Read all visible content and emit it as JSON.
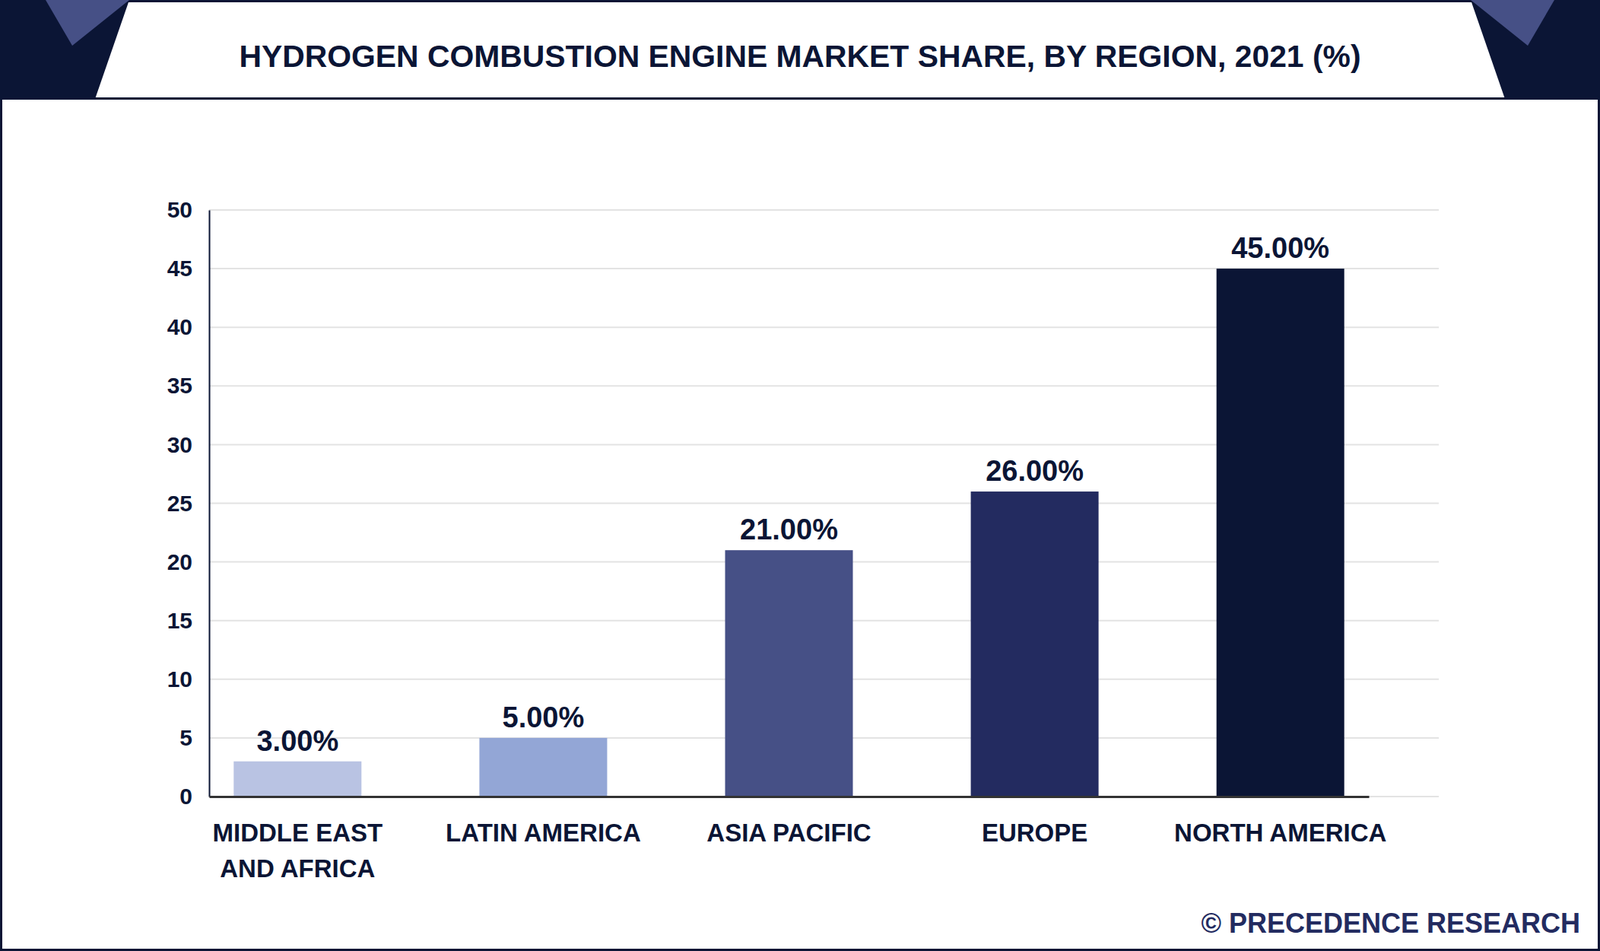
{
  "chart_data": {
    "type": "bar",
    "title": "HYDROGEN COMBUSTION ENGINE MARKET SHARE, BY REGION, 2021 (%)",
    "source": "© PRECEDENCE RESEARCH",
    "categories": [
      "MIDDLE EAST AND AFRICA",
      "LATIN AMERICA",
      "ASIA PACIFIC",
      "EUROPE",
      "NORTH AMERICA"
    ],
    "values": [
      3,
      5,
      21,
      26,
      45
    ],
    "value_labels": [
      "3.00%",
      "5.00%",
      "21.00%",
      "26.00%",
      "45.00%"
    ],
    "colors": [
      "#b9c3e3",
      "#93a6d6",
      "#465086",
      "#232b60",
      "#0b1535"
    ],
    "ylim": [
      0,
      50
    ],
    "yticks": [
      0,
      5,
      10,
      15,
      20,
      25,
      30,
      35,
      40,
      45,
      50
    ],
    "grid": true,
    "data_labels": true
  }
}
